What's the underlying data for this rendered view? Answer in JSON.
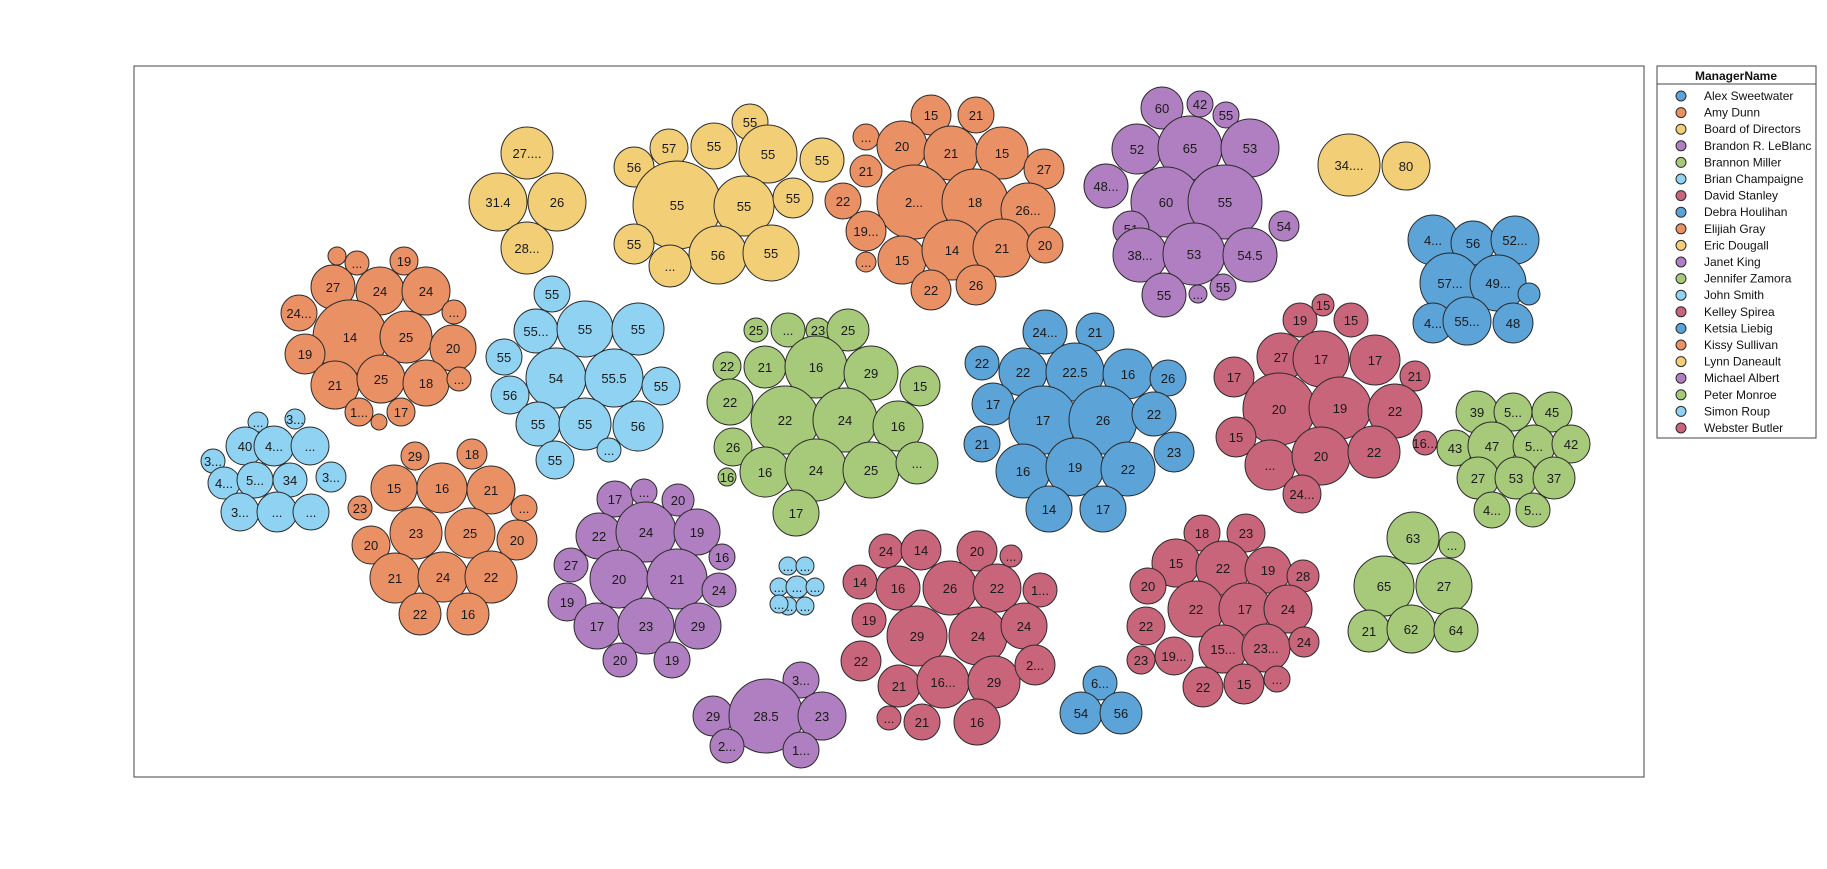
{
  "chart_data": {
    "type": "packed-bubble",
    "legend": {
      "title": "ManagerName",
      "position": "top-right"
    },
    "series": [
      {
        "name": "Alex Sweetwater",
        "color": "#5ca3d8",
        "values": [
          "4...",
          "56",
          "52...",
          "57...",
          "49...",
          "4...",
          "55...",
          "48",
          "",
          "6...",
          "54",
          "56"
        ]
      },
      {
        "name": "Amy Dunn",
        "color": "#ea9065",
        "values": [
          "19",
          "...",
          "27",
          "24",
          "24",
          "24...",
          "...",
          "14",
          "25",
          "19",
          "20",
          "21",
          "25",
          "18",
          "...",
          "1...",
          "17",
          "",
          ""
        ]
      },
      {
        "name": "Board of Directors",
        "color": "#f2cf76",
        "values": [
          "27....",
          "31.4",
          "26",
          "28..."
        ]
      },
      {
        "name": "Brandon R. LeBlanc",
        "color": "#b07fc1",
        "values": [
          "60",
          "42",
          "55",
          "52",
          "65",
          "53",
          "48...",
          "60",
          "55",
          "51",
          "54",
          "38...",
          "53",
          "54.5",
          "55",
          "...",
          "55"
        ]
      },
      {
        "name": "Brannon Miller",
        "color": "#a6c97a",
        "values": [
          "25",
          "...",
          "23",
          "25",
          "22",
          "21",
          "16",
          "29",
          "15",
          "22",
          "22",
          "24",
          "16",
          "26",
          "16",
          "24",
          "25",
          "...",
          "16",
          "17"
        ]
      },
      {
        "name": "Brian Champaigne",
        "color": "#8fd2f2",
        "values": [
          "55",
          "55...",
          "55",
          "55",
          "55",
          "54",
          "55.5",
          "55",
          "56",
          "55",
          "55",
          "56",
          "55",
          "..."
        ]
      },
      {
        "name": "David Stanley",
        "color": "#c9657a",
        "values": [
          "24",
          "14",
          "20",
          "...",
          "14",
          "16",
          "26",
          "22",
          "1...",
          "19",
          "29",
          "24",
          "24",
          "22",
          "21",
          "16...",
          "29",
          "2...",
          "...",
          "21",
          "16"
        ]
      },
      {
        "name": "Debra Houlihan",
        "color": "#5ca3d8",
        "values": [
          "24...",
          "21",
          "22",
          "22",
          "22.5",
          "16",
          "26",
          "17",
          "17",
          "26",
          "22",
          "21",
          "16",
          "19",
          "22",
          "23",
          "14",
          "17"
        ]
      },
      {
        "name": "Elijiah Gray",
        "color": "#ea9065",
        "values": [
          "15",
          "21",
          "...",
          "20",
          "21",
          "15",
          "27",
          "21",
          "22",
          "2...",
          "18",
          "26...",
          "19...",
          "15",
          "14",
          "21",
          "20",
          "...",
          "22",
          "26"
        ]
      },
      {
        "name": "Eric Dougall",
        "color": "#f2cf76",
        "values": [
          "55",
          "57",
          "55",
          "55",
          "55",
          "56",
          "55",
          "55",
          "55",
          "55",
          "56",
          "55",
          "..."
        ]
      },
      {
        "name": "Janet King",
        "color": "#b07fc1",
        "values": [
          "3...",
          "29",
          "28.5",
          "23",
          "2...",
          "1..."
        ]
      },
      {
        "name": "Jennifer Zamora",
        "color": "#a6c97a",
        "values": [
          "63",
          "...",
          "65",
          "27",
          "21",
          "62",
          "64"
        ]
      },
      {
        "name": "John Smith",
        "color": "#8fd2f2",
        "values": [
          "...",
          "...",
          "...",
          "...",
          "...",
          "...",
          "...",
          "..."
        ]
      },
      {
        "name": "Kelley Spirea",
        "color": "#c9657a",
        "values": [
          "18",
          "23",
          "15",
          "22",
          "19",
          "28",
          "20",
          "22",
          "17",
          "24",
          "22",
          "19...",
          "15...",
          "23...",
          "24",
          "23",
          "22",
          "15",
          "..."
        ]
      },
      {
        "name": "Ketsia Liebig",
        "color": "#5ca3d8",
        "values": []
      },
      {
        "name": "Kissy Sullivan",
        "color": "#ea9065",
        "values": [
          "29",
          "18",
          "15",
          "16",
          "21",
          "23",
          "...",
          "20",
          "23",
          "25",
          "20",
          "21",
          "24",
          "22",
          "22",
          "16"
        ]
      },
      {
        "name": "Lynn Daneault",
        "color": "#f2cf76",
        "values": [
          "34....",
          "80"
        ]
      },
      {
        "name": "Michael Albert",
        "color": "#b07fc1",
        "values": [
          "17",
          "...",
          "20",
          "22",
          "24",
          "19",
          "16",
          "27",
          "20",
          "21",
          "24",
          "19",
          "17",
          "23",
          "29",
          "20",
          "19"
        ]
      },
      {
        "name": "Peter Monroe",
        "color": "#a6c97a",
        "values": [
          "39",
          "5...",
          "45",
          "43",
          "47",
          "5...",
          "42",
          "27",
          "53",
          "37",
          "4...",
          "5..."
        ]
      },
      {
        "name": "Simon Roup",
        "color": "#8fd2f2",
        "values": [
          "...",
          "3...",
          "40",
          "4...",
          "...",
          "3...",
          "4...",
          "5...",
          "34",
          "3...",
          "3...",
          "...",
          "..."
        ]
      },
      {
        "name": "Webster Butler",
        "color": "#c9657a",
        "values": [
          "19",
          "15",
          "15",
          "27",
          "17",
          "17",
          "21",
          "17",
          "20",
          "19",
          "22",
          "16...",
          "15",
          "...",
          "20",
          "22",
          "24..."
        ]
      }
    ]
  }
}
